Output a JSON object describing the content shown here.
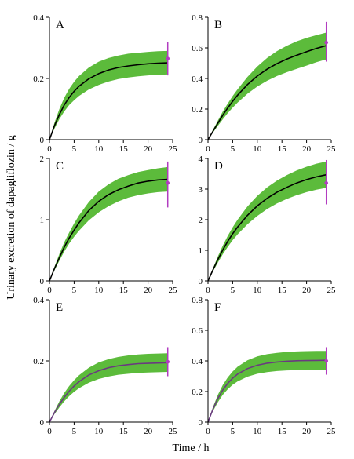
{
  "figure": {
    "xlabel": "Time / h",
    "ylabel": "Urinary excretion of dapagliflozin / g"
  },
  "colors": {
    "band": "#5cbb3b",
    "median_line_dark": "#000000",
    "median_line_purple": "#6a3a80",
    "observed": "#b23cc0"
  },
  "chart_data": [
    {
      "panel": "A",
      "type": "area",
      "xlim": [
        0,
        25
      ],
      "ylim": [
        0,
        0.4
      ],
      "xticks": [
        "0",
        "5",
        "10",
        "15",
        "20",
        "25"
      ],
      "yticks": [
        "0",
        "0.2",
        "0.4"
      ],
      "yticks_values": [
        0,
        0.2,
        0.4
      ],
      "time_h": [
        0,
        1,
        2,
        3,
        4,
        5,
        6,
        8,
        10,
        12,
        14,
        16,
        18,
        20,
        22,
        24
      ],
      "median": [
        0,
        0.045,
        0.082,
        0.113,
        0.138,
        0.158,
        0.175,
        0.199,
        0.216,
        0.228,
        0.236,
        0.241,
        0.245,
        0.248,
        0.25,
        0.251
      ],
      "band_lower": [
        0,
        0.036,
        0.067,
        0.092,
        0.113,
        0.129,
        0.143,
        0.164,
        0.179,
        0.19,
        0.198,
        0.203,
        0.207,
        0.21,
        0.212,
        0.213
      ],
      "band_upper": [
        0,
        0.055,
        0.1,
        0.137,
        0.166,
        0.189,
        0.208,
        0.236,
        0.255,
        0.267,
        0.275,
        0.281,
        0.284,
        0.287,
        0.289,
        0.29
      ],
      "observed": {
        "time_h": 24,
        "value": 0.265,
        "low": 0.21,
        "high": 0.32
      },
      "line_color": "median_line_dark"
    },
    {
      "panel": "B",
      "type": "area",
      "xlim": [
        0,
        25
      ],
      "ylim": [
        0,
        0.8
      ],
      "xticks": [
        "0",
        "5",
        "10",
        "15",
        "20",
        "25"
      ],
      "yticks": [
        "0",
        "0.2",
        "0.4",
        "0.6",
        "0.8"
      ],
      "yticks_values": [
        0,
        0.2,
        0.4,
        0.6,
        0.8
      ],
      "time_h": [
        0,
        1,
        2,
        3,
        4,
        5,
        6,
        8,
        10,
        12,
        14,
        16,
        18,
        20,
        22,
        24
      ],
      "median": [
        0,
        0.055,
        0.108,
        0.16,
        0.207,
        0.251,
        0.291,
        0.36,
        0.416,
        0.461,
        0.497,
        0.527,
        0.552,
        0.575,
        0.597,
        0.615
      ],
      "band_lower": [
        0,
        0.046,
        0.09,
        0.133,
        0.173,
        0.209,
        0.242,
        0.3,
        0.347,
        0.385,
        0.416,
        0.441,
        0.463,
        0.484,
        0.506,
        0.525
      ],
      "band_upper": [
        0,
        0.064,
        0.125,
        0.183,
        0.236,
        0.285,
        0.33,
        0.41,
        0.478,
        0.535,
        0.579,
        0.614,
        0.643,
        0.665,
        0.683,
        0.7
      ],
      "observed": {
        "time_h": 24,
        "value": 0.635,
        "low": 0.51,
        "high": 0.77
      },
      "line_color": "median_line_dark"
    },
    {
      "panel": "C",
      "type": "area",
      "xlim": [
        0,
        25
      ],
      "ylim": [
        0,
        2
      ],
      "xticks": [
        "0",
        "5",
        "10",
        "15",
        "20",
        "25"
      ],
      "yticks": [
        "0",
        "1",
        "2"
      ],
      "yticks_values": [
        0,
        1,
        2
      ],
      "time_h": [
        0,
        1,
        2,
        3,
        4,
        5,
        6,
        8,
        10,
        12,
        14,
        16,
        18,
        20,
        22,
        24
      ],
      "median": [
        0,
        0.2,
        0.38,
        0.55,
        0.7,
        0.83,
        0.95,
        1.15,
        1.3,
        1.41,
        1.49,
        1.55,
        1.6,
        1.63,
        1.65,
        1.66
      ],
      "band_lower": [
        0,
        0.17,
        0.33,
        0.48,
        0.61,
        0.72,
        0.82,
        0.99,
        1.12,
        1.22,
        1.3,
        1.36,
        1.4,
        1.43,
        1.45,
        1.46
      ],
      "band_upper": [
        0,
        0.23,
        0.44,
        0.63,
        0.79,
        0.94,
        1.07,
        1.29,
        1.46,
        1.58,
        1.67,
        1.73,
        1.78,
        1.81,
        1.84,
        1.86
      ],
      "observed": {
        "time_h": 24,
        "value": 1.6,
        "low": 1.2,
        "high": 1.95
      },
      "line_color": "median_line_dark"
    },
    {
      "panel": "D",
      "type": "area",
      "xlim": [
        0,
        25
      ],
      "ylim": [
        0,
        4
      ],
      "xticks": [
        "0",
        "5",
        "10",
        "15",
        "20",
        "25"
      ],
      "yticks": [
        "0",
        "1",
        "2",
        "3",
        "4"
      ],
      "yticks_values": [
        0,
        1,
        2,
        3,
        4
      ],
      "time_h": [
        0,
        1,
        2,
        3,
        4,
        5,
        6,
        8,
        10,
        12,
        14,
        16,
        18,
        20,
        22,
        24
      ],
      "median": [
        0,
        0.36,
        0.7,
        1.01,
        1.29,
        1.54,
        1.76,
        2.14,
        2.45,
        2.7,
        2.9,
        3.06,
        3.2,
        3.31,
        3.4,
        3.47
      ],
      "band_lower": [
        0,
        0.31,
        0.6,
        0.87,
        1.11,
        1.33,
        1.52,
        1.85,
        2.12,
        2.35,
        2.53,
        2.68,
        2.8,
        2.9,
        2.98,
        3.04
      ],
      "band_upper": [
        0,
        0.41,
        0.8,
        1.15,
        1.47,
        1.75,
        2.0,
        2.43,
        2.78,
        3.06,
        3.28,
        3.46,
        3.61,
        3.73,
        3.83,
        3.9
      ],
      "observed": {
        "time_h": 24,
        "value": 3.2,
        "low": 2.5,
        "high": 3.95
      },
      "line_color": "median_line_dark"
    },
    {
      "panel": "E",
      "type": "area",
      "xlim": [
        0,
        25
      ],
      "ylim": [
        0,
        0.4
      ],
      "xticks": [
        "0",
        "5",
        "10",
        "15",
        "20",
        "25"
      ],
      "yticks": [
        "0",
        "0.2",
        "0.4"
      ],
      "yticks_values": [
        0,
        0.2,
        0.4
      ],
      "time_h": [
        0,
        1,
        2,
        3,
        4,
        5,
        6,
        8,
        10,
        12,
        14,
        16,
        18,
        20,
        22,
        24
      ],
      "median": [
        0,
        0.031,
        0.058,
        0.081,
        0.101,
        0.118,
        0.132,
        0.154,
        0.168,
        0.178,
        0.184,
        0.188,
        0.191,
        0.192,
        0.193,
        0.194
      ],
      "band_lower": [
        0,
        0.026,
        0.048,
        0.068,
        0.085,
        0.099,
        0.111,
        0.129,
        0.141,
        0.149,
        0.155,
        0.158,
        0.161,
        0.162,
        0.163,
        0.164
      ],
      "band_upper": [
        0,
        0.036,
        0.068,
        0.095,
        0.118,
        0.137,
        0.153,
        0.178,
        0.195,
        0.206,
        0.213,
        0.218,
        0.221,
        0.223,
        0.224,
        0.225
      ],
      "observed": {
        "time_h": 24,
        "value": 0.197,
        "low": 0.15,
        "high": 0.245
      },
      "line_color": "median_line_purple"
    },
    {
      "panel": "F",
      "type": "area",
      "xlim": [
        0,
        25
      ],
      "ylim": [
        0,
        0.8
      ],
      "xticks": [
        "0",
        "5",
        "10",
        "15",
        "20",
        "25"
      ],
      "yticks": [
        "0",
        "0.2",
        "0.4",
        "0.6",
        "0.8"
      ],
      "yticks_values": [
        0,
        0.2,
        0.4,
        0.6,
        0.8
      ],
      "time_h": [
        0,
        1,
        2,
        3,
        4,
        5,
        6,
        8,
        10,
        12,
        14,
        16,
        18,
        20,
        22,
        24
      ],
      "median": [
        0,
        0.085,
        0.155,
        0.21,
        0.253,
        0.287,
        0.314,
        0.35,
        0.372,
        0.385,
        0.393,
        0.398,
        0.401,
        0.402,
        0.403,
        0.404
      ],
      "band_lower": [
        0,
        0.072,
        0.131,
        0.178,
        0.215,
        0.244,
        0.266,
        0.297,
        0.316,
        0.327,
        0.334,
        0.338,
        0.34,
        0.341,
        0.342,
        0.343
      ],
      "band_upper": [
        0,
        0.098,
        0.179,
        0.242,
        0.292,
        0.331,
        0.362,
        0.404,
        0.429,
        0.444,
        0.453,
        0.459,
        0.462,
        0.464,
        0.465,
        0.465
      ],
      "observed": {
        "time_h": 24,
        "value": 0.4,
        "low": 0.31,
        "high": 0.49
      },
      "line_color": "median_line_purple"
    }
  ]
}
